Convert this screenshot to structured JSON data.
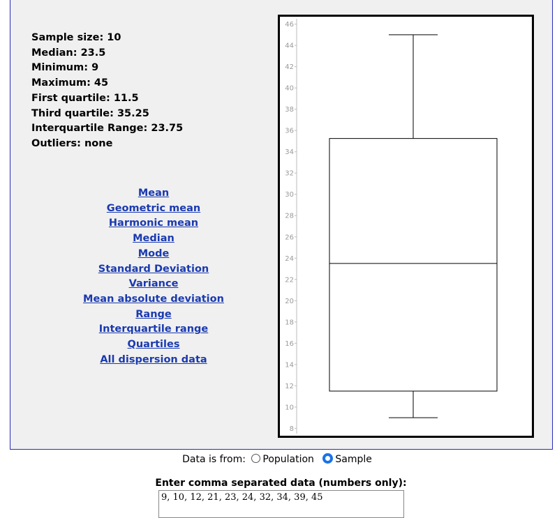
{
  "stats": [
    "Sample size: 10",
    "Median: 23.5",
    "Minimum: 9",
    "Maximum: 45",
    "First quartile: 11.5",
    "Third quartile: 35.25",
    "Interquartile Range: 23.75",
    "Outliers: none"
  ],
  "links": [
    "Mean",
    "Geometric mean",
    "Harmonic mean",
    "Median",
    "Mode",
    "Standard Deviation",
    "Variance",
    "Mean absolute deviation",
    "Range",
    "Interquartile range",
    "Quartiles",
    "All dispersion data"
  ],
  "chart_data": {
    "type": "boxplot",
    "min": 9,
    "q1": 11.5,
    "median": 23.5,
    "q3": 35.25,
    "max": 45,
    "ylim": [
      7.5,
      46.5
    ],
    "yticks": [
      8,
      10,
      12,
      14,
      16,
      18,
      20,
      22,
      24,
      26,
      28,
      30,
      32,
      34,
      36,
      38,
      40,
      42,
      44,
      46
    ]
  },
  "source": {
    "label": "Data is from:",
    "population": "Population",
    "sample": "Sample",
    "selected": "sample"
  },
  "entry": {
    "label": "Enter comma separated data (numbers only):",
    "value": "9, 10, 12, 21, 23, 24, 32, 34, 39, 45"
  }
}
